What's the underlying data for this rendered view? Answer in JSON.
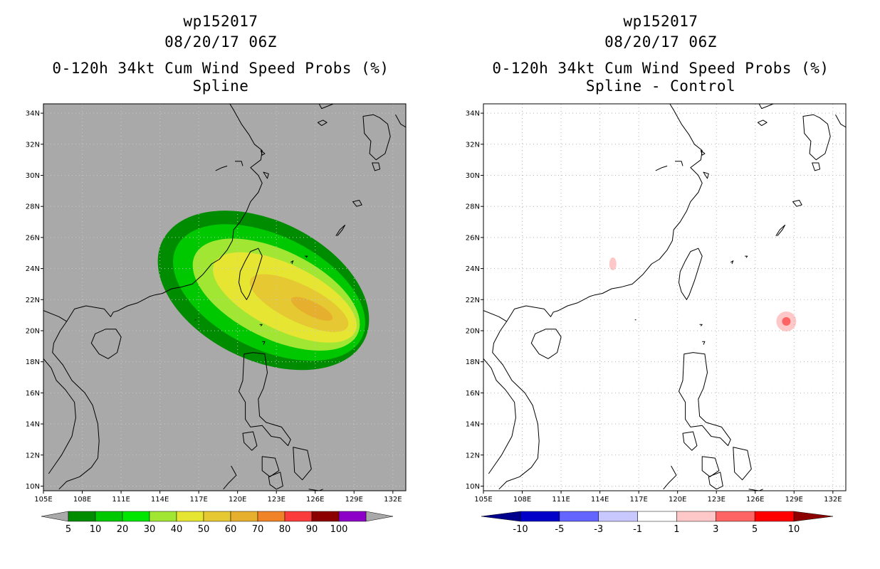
{
  "panels": [
    {
      "id": "left",
      "storm_id": "wp152017",
      "datetime": "08/20/17 06Z",
      "product": "0-120h 34kt Cum Wind Speed Probs (%)",
      "subtitle": "Spline",
      "background": "#a9a9a9"
    },
    {
      "id": "right",
      "storm_id": "wp152017",
      "datetime": "08/20/17 06Z",
      "product": "0-120h 34kt Cum Wind Speed Probs (%)",
      "subtitle": "Spline - Control",
      "background": "#ffffff"
    }
  ],
  "axes": {
    "lon_labels": [
      "105E",
      "108E",
      "111E",
      "114E",
      "117E",
      "120E",
      "123E",
      "126E",
      "129E",
      "132E"
    ],
    "lat_labels": [
      "10N",
      "12N",
      "14N",
      "16N",
      "18N",
      "20N",
      "22N",
      "24N",
      "26N",
      "28N",
      "30N",
      "32N",
      "34N"
    ],
    "lon_range": [
      105,
      133
    ],
    "lat_range": [
      9.7,
      34.6
    ]
  },
  "colorbar_left": {
    "labels": [
      "5",
      "10",
      "20",
      "30",
      "40",
      "50",
      "60",
      "70",
      "80",
      "90",
      "100"
    ],
    "colors": [
      "#008c00",
      "#00c800",
      "#00e600",
      "#a0e632",
      "#e6e632",
      "#e6c832",
      "#e6af2d",
      "#f08228",
      "#fa3c3c",
      "#8c0000",
      "#8c00c8"
    ],
    "under_color": "#a9a9a9",
    "over_color": "#a9a9a9"
  },
  "colorbar_right": {
    "labels": [
      "-10",
      "-5",
      "-3",
      "-1",
      "1",
      "3",
      "5",
      "10"
    ],
    "colors": [
      "#0000c8",
      "#6464ff",
      "#c8c8ff",
      "#ffffff",
      "#ffc8c8",
      "#ff6464",
      "#ff0000"
    ],
    "under_color": "#00008c",
    "over_color": "#8c0000"
  },
  "swath_levels": [
    {
      "label": "5",
      "color": "#008c00"
    },
    {
      "label": "10",
      "color": "#00c800"
    },
    {
      "label": "20",
      "color": "#a0e632"
    },
    {
      "label": "30",
      "color": "#e6e632"
    },
    {
      "label": "40",
      "color": "#e6c832"
    },
    {
      "label": "50",
      "color": "#e6af2d"
    }
  ],
  "difference_spots": [
    {
      "lon": 128.4,
      "lat": 20.6,
      "label": "3",
      "color": "#ffc8c8"
    },
    {
      "lon": 128.4,
      "lat": 20.6,
      "label": "5",
      "color": "#ff6464"
    },
    {
      "lon": 115.0,
      "lat": 24.3,
      "label": "1",
      "color": "#ffc8c8"
    }
  ]
}
